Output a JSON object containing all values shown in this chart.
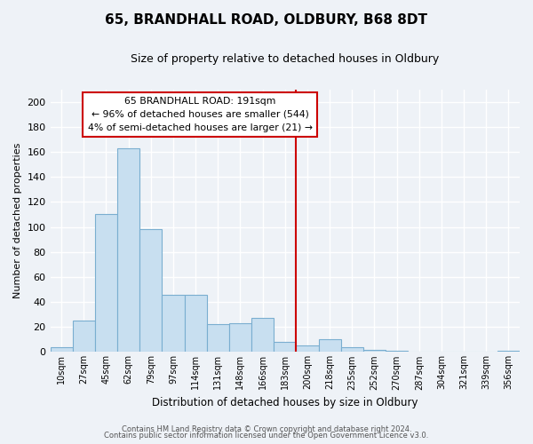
{
  "title": "65, BRANDHALL ROAD, OLDBURY, B68 8DT",
  "subtitle": "Size of property relative to detached houses in Oldbury",
  "xlabel": "Distribution of detached houses by size in Oldbury",
  "ylabel": "Number of detached properties",
  "bar_labels": [
    "10sqm",
    "27sqm",
    "45sqm",
    "62sqm",
    "79sqm",
    "97sqm",
    "114sqm",
    "131sqm",
    "148sqm",
    "166sqm",
    "183sqm",
    "200sqm",
    "218sqm",
    "235sqm",
    "252sqm",
    "270sqm",
    "287sqm",
    "304sqm",
    "321sqm",
    "339sqm",
    "356sqm"
  ],
  "bar_values": [
    4,
    25,
    110,
    163,
    98,
    46,
    46,
    22,
    23,
    27,
    8,
    5,
    10,
    4,
    2,
    1,
    0,
    0,
    0,
    0,
    1
  ],
  "bar_color": "#c8dff0",
  "bar_edge_color": "#7aaed0",
  "vline_color": "#cc0000",
  "ylim": [
    0,
    210
  ],
  "yticks": [
    0,
    20,
    40,
    60,
    80,
    100,
    120,
    140,
    160,
    180,
    200
  ],
  "annotation_title": "65 BRANDHALL ROAD: 191sqm",
  "annotation_line1": "← 96% of detached houses are smaller (544)",
  "annotation_line2": "4% of semi-detached houses are larger (21) →",
  "footer_line1": "Contains HM Land Registry data © Crown copyright and database right 2024.",
  "footer_line2": "Contains public sector information licensed under the Open Government Licence v3.0.",
  "background_color": "#eef2f7",
  "plot_bg_color": "#eef2f7",
  "grid_color": "#ffffff",
  "annotation_box_color": "#ffffff",
  "annotation_box_edge": "#cc0000"
}
